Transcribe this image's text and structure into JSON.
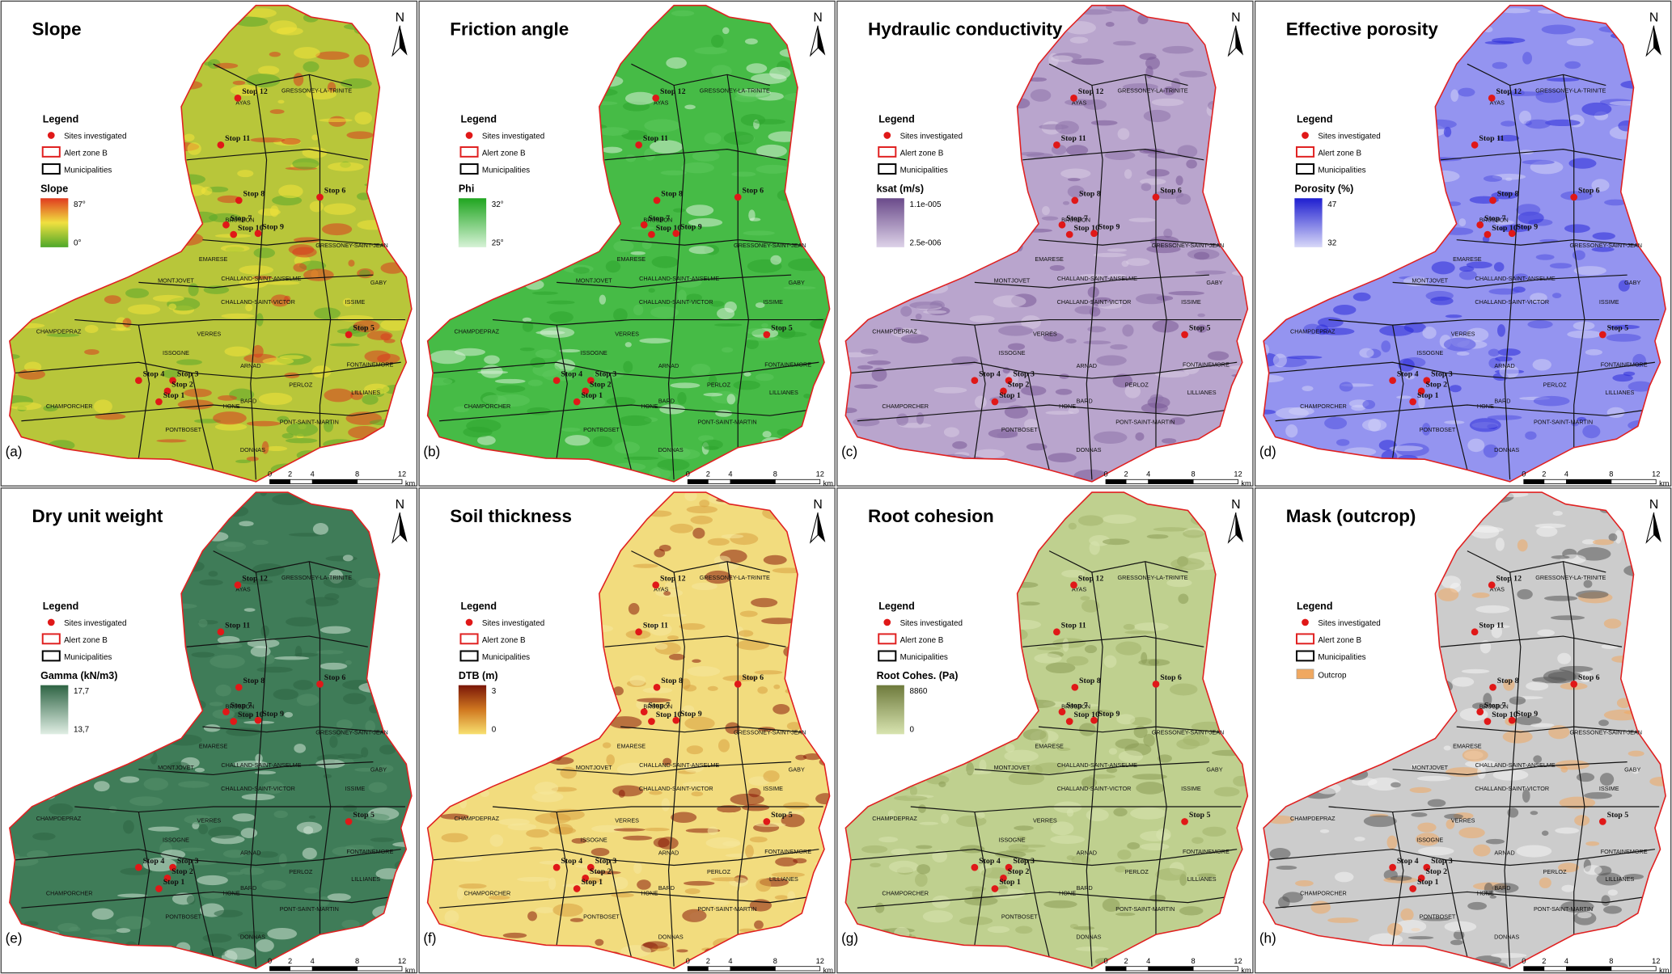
{
  "panels": [
    {
      "letter": "(a)",
      "title": "Slope",
      "colorbar": {
        "label": "Slope",
        "max": "87°",
        "min": "0°"
      }
    },
    {
      "letter": "(b)",
      "title": "Friction angle",
      "colorbar": {
        "label": "Phi",
        "max": "32°",
        "min": "25°"
      }
    },
    {
      "letter": "(c)",
      "title": "Hydraulic conductivity",
      "colorbar": {
        "label": "ksat (m/s)",
        "max": "1.1e-005",
        "min": "2.5e-006"
      }
    },
    {
      "letter": "(d)",
      "title": "Effective porosity",
      "colorbar": {
        "label": "Porosity (%)",
        "max": "47",
        "min": "32"
      }
    },
    {
      "letter": "(e)",
      "title": "Dry unit weight",
      "colorbar": {
        "label": "Gamma (kN/m3)",
        "max": "17,7",
        "min": "13,7"
      }
    },
    {
      "letter": "(f)",
      "title": "Soil thickness",
      "colorbar": {
        "label": "DTB (m)",
        "max": "3",
        "min": "0"
      }
    },
    {
      "letter": "(g)",
      "title": "Root cohesion",
      "colorbar": {
        "label": "Root Cohes. (Pa)",
        "max": "8860",
        "min": "0"
      }
    },
    {
      "letter": "(h)",
      "title": "Mask (outcrop)",
      "outcrop": "Outcrop"
    }
  ],
  "legend": {
    "title": "Legend",
    "sites": "Sites investigated",
    "alert": "Alert zone B",
    "municipalities": "Municipalities"
  },
  "municipalities": [
    "GRESSONEY-LA-TRINITE",
    "AYAS",
    "BRUSSON",
    "GRESSONEY-SAINT-JEAN",
    "EMARESE",
    "MONTJOVET",
    "CHALLAND-SAINT-ANSELME",
    "GABY",
    "CHALLAND-SAINT-VICTOR",
    "ISSIME",
    "CHAMPDEPRAZ",
    "VERRES",
    "ISSOGNE",
    "ARNAD",
    "FONTAINEMORE",
    "PERLOZ",
    "LILLIANES",
    "HONE",
    "BARD",
    "CHAMPORCHER",
    "PONT-SAINT-MARTIN",
    "PONTBOSET",
    "DONNAS"
  ],
  "stops": [
    "Stop 12",
    "Stop 11",
    "Stop 8",
    "Stop 6",
    "Stop 7",
    "Stop 10",
    "Stop 9",
    "Stop 5",
    "Stop 4",
    "Stop 3",
    "Stop 2",
    "Stop 1"
  ],
  "scale": {
    "ticks": [
      "0",
      "2",
      "4",
      "8",
      "12"
    ],
    "unit": "km"
  },
  "north": "N"
}
